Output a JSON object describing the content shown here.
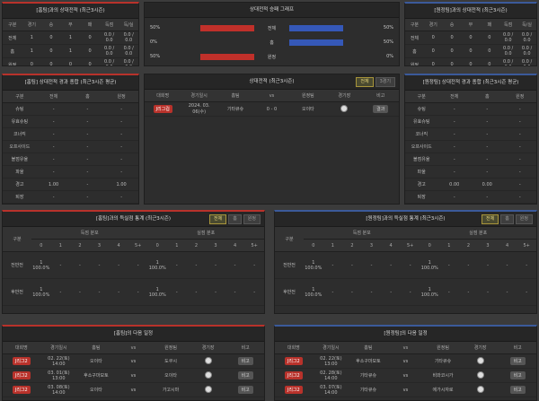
{
  "home_record": {
    "title": "[홈팀]과의 상대전적 (최근3시즌)",
    "columns": [
      "구분",
      "경기",
      "승",
      "무",
      "패",
      "득점",
      "득/실"
    ],
    "rows": [
      [
        "전체",
        1,
        0,
        1,
        0,
        "0.0 / 0.0",
        "0.0 / 0.0"
      ],
      [
        "홈",
        1,
        0,
        1,
        0,
        "0.0 / 0.0",
        "0.0 / 0.0"
      ],
      [
        "원정",
        0,
        0,
        0,
        0,
        "0.0 / 0.0",
        "0.0 / 0.0"
      ]
    ]
  },
  "graph": {
    "title": "상대전적 승패 그래프",
    "rows": [
      {
        "label": "전체",
        "home": {
          "value": 50,
          "label": "50%"
        },
        "away": {
          "value": 50,
          "label": "50%"
        }
      },
      {
        "label": "홈",
        "home": {
          "value": 0,
          "label": "0%"
        },
        "away": {
          "value": 50,
          "label": "50%"
        }
      },
      {
        "label": "원정",
        "home": {
          "value": 50,
          "label": "50%"
        },
        "away": {
          "value": 0,
          "label": "0%"
        }
      }
    ]
  },
  "away_record": {
    "title": "[원정팀]과의 상대전적 (최근3시즌)",
    "columns": [
      "구분",
      "경기",
      "승",
      "무",
      "패",
      "득점",
      "득/실"
    ],
    "rows": [
      [
        "전체",
        0,
        0,
        0,
        0,
        "0.0 / 0.0",
        "0.0 / 0.0"
      ],
      [
        "홈",
        0,
        0,
        0,
        0,
        "0.0 / 0.0",
        "0.0 / 0.0"
      ],
      [
        "원정",
        0,
        0,
        0,
        0,
        "0.0 / 0.0",
        "0.0 / 0.0"
      ]
    ]
  },
  "home_stats": {
    "title": "[홈팀] 상대전적 경과 종합 (최근3시즌 평균)",
    "columns": [
      "구분",
      "전체",
      "홈",
      "원정"
    ],
    "rows": [
      [
        "슈팅",
        "-",
        "-",
        "-"
      ],
      [
        "유효슈팅",
        "-",
        "-",
        "-"
      ],
      [
        "코너킥",
        "-",
        "-",
        "-"
      ],
      [
        "오프사이드",
        "-",
        "-",
        "-"
      ],
      [
        "볼점유율",
        "-",
        "-",
        "-"
      ],
      [
        "파울",
        "-",
        "-",
        "-"
      ],
      [
        "경고",
        "1.00",
        "-",
        "1.00"
      ],
      [
        "퇴장",
        "-",
        "-",
        "-"
      ]
    ]
  },
  "h2h": {
    "title": "상대전적 (최근3시즌)",
    "tabs": [
      "전체",
      "3경기"
    ],
    "columns": [
      "대회명",
      "경기일시",
      "홈팀",
      "vs",
      "원정팀",
      "경기장",
      "비고"
    ],
    "rows": [
      {
        "league": "J리그컵",
        "date": "2024. 03. 06(수)",
        "home": "기타큐슈",
        "vs": "0 - 0",
        "away": "오이타",
        "note": "결과"
      }
    ]
  },
  "away_stats": {
    "title": "[원정팀] 상대전적 경과 종합 (최근3시즌 평균)",
    "columns": [
      "구분",
      "전체",
      "홈",
      "원정"
    ],
    "rows": [
      [
        "슈팅",
        "-",
        "-",
        "-"
      ],
      [
        "유효슈팅",
        "-",
        "-",
        "-"
      ],
      [
        "코너킥",
        "-",
        "-",
        "-"
      ],
      [
        "오프사이드",
        "-",
        "-",
        "-"
      ],
      [
        "볼점유율",
        "-",
        "-",
        "-"
      ],
      [
        "파울",
        "-",
        "-",
        "-"
      ],
      [
        "경고",
        "0.00",
        "0.00",
        "-"
      ],
      [
        "퇴장",
        "-",
        "-",
        "-"
      ]
    ]
  },
  "home_goals": {
    "title": "[홈팀]과의 득실점 통계 (최근3시즌)",
    "tabs": [
      "전체",
      "홈",
      "원정"
    ],
    "group_label": "구분",
    "groups": [
      "득점 분포",
      "실점 분포"
    ],
    "bins": [
      "0",
      "1",
      "2",
      "3",
      "4",
      "5+"
    ],
    "rows": [
      {
        "label": "전반전",
        "cells": [
          [
            1,
            "100.0%"
          ],
          "-",
          "-",
          "-",
          "-",
          "-",
          [
            1,
            "100.0%"
          ],
          "-",
          "-",
          "-",
          "-",
          "-"
        ]
      },
      {
        "label": "후반전",
        "cells": [
          [
            1,
            "100.0%"
          ],
          "-",
          "-",
          "-",
          "-",
          "-",
          [
            1,
            "100.0%"
          ],
          "-",
          "-",
          "-",
          "-",
          "-"
        ]
      }
    ]
  },
  "away_goals": {
    "title": "[원정팀]과의 득실점 통계 (최근3시즌)",
    "tabs": [
      "전체",
      "홈",
      "원정"
    ],
    "group_label": "구분",
    "groups": [
      "득점 분포",
      "실점 분포"
    ],
    "bins": [
      "0",
      "1",
      "2",
      "3",
      "4",
      "5+"
    ],
    "rows": [
      {
        "label": "전반전",
        "cells": [
          [
            1,
            "100.0%"
          ],
          "-",
          "-",
          "-",
          "-",
          "-",
          [
            1,
            "100.0%"
          ],
          "-",
          "-",
          "-",
          "-",
          "-"
        ]
      },
      {
        "label": "후반전",
        "cells": [
          [
            1,
            "100.0%"
          ],
          "-",
          "-",
          "-",
          "-",
          "-",
          [
            1,
            "100.0%"
          ],
          "-",
          "-",
          "-",
          "-",
          "-"
        ]
      }
    ]
  },
  "home_next": {
    "title": "[홈팀]의 다음 일정",
    "columns": [
      "대회명",
      "경기일시",
      "홈팀",
      "vs",
      "원정팀",
      "경기장",
      "비고"
    ],
    "rows": [
      {
        "league": "J리그2",
        "date": "02. 22(토) 14:00",
        "home": "오이타",
        "vs": "vs",
        "away": "도쿠시",
        "note": "비고"
      },
      {
        "league": "J리그2",
        "date": "03. 01(토) 13:00",
        "home": "후소구마모토",
        "vs": "vs",
        "away": "오이타",
        "note": "비고"
      },
      {
        "league": "J리그2",
        "date": "03. 08(토) 14:00",
        "home": "오이타",
        "vs": "vs",
        "away": "가고시마",
        "note": "비고"
      }
    ]
  },
  "away_next": {
    "title": "[원정팀]의 다음 일정",
    "columns": [
      "대회명",
      "경기일시",
      "홈팀",
      "vs",
      "원정팀",
      "경기장",
      "비고"
    ],
    "rows": [
      {
        "league": "J리그2",
        "date": "02. 22(토) 13:00",
        "home": "후소구마모토",
        "vs": "vs",
        "away": "기타큐슈",
        "note": "비고"
      },
      {
        "league": "J리그2",
        "date": "02. 28(토) 14:00",
        "home": "기타큐슈",
        "vs": "vs",
        "away": "비와코시가",
        "note": "비고"
      },
      {
        "league": "J리그2",
        "date": "03. 07(토) 14:00",
        "home": "기타큐슈",
        "vs": "vs",
        "away": "에가시자로",
        "note": "비고"
      }
    ]
  }
}
